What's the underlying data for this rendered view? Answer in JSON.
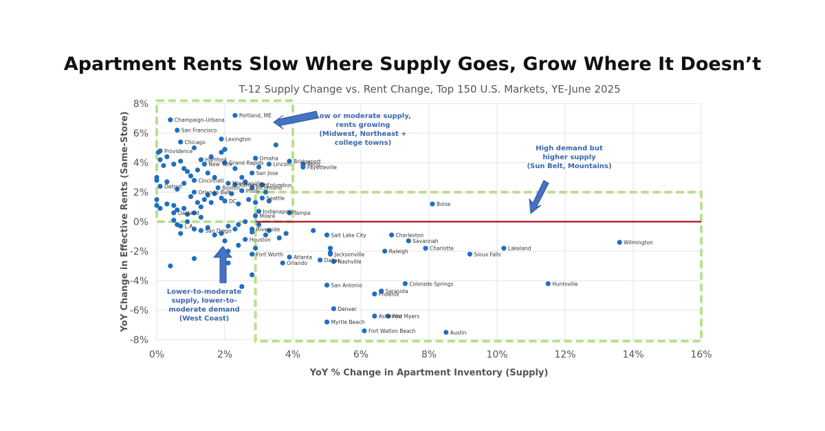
{
  "chart_data": {
    "type": "scatter",
    "title": "Apartment Rents Slow Where Supply Goes, Grow Where It Doesn’t",
    "subtitle": "T-12 Supply Change vs. Rent Change, Top 150 U.S. Markets, YE-June 2025",
    "xlabel": "YoY % Change in Apartment Inventory (Supply)",
    "ylabel": "YoY Change in Effective Rents (Same-Store)",
    "xlim": [
      0,
      16
    ],
    "ylim": [
      -8,
      8
    ],
    "x_ticks": [
      "0%",
      "2%",
      "4%",
      "6%",
      "8%",
      "10%",
      "12%",
      "14%",
      "16%"
    ],
    "y_ticks": [
      "8%",
      "6%",
      "4%",
      "2%",
      "0%",
      "-2%",
      "-4%",
      "-6%",
      "-8%"
    ],
    "grid": true,
    "colors": {
      "points": "#1f6fbf",
      "zero_line": "#b22234",
      "box": "#b9e08f",
      "annotation": "#3a67b0"
    },
    "labeled_points": [
      {
        "label": "Champaign-Urbana",
        "x": 0.4,
        "y": 6.9
      },
      {
        "label": "Portland, ME",
        "x": 2.3,
        "y": 7.2
      },
      {
        "label": "San Francisco",
        "x": 0.6,
        "y": 6.2
      },
      {
        "label": "Chicago",
        "x": 0.7,
        "y": 5.4
      },
      {
        "label": "Providence",
        "x": 0.1,
        "y": 4.8
      },
      {
        "label": "Lexington",
        "x": 1.9,
        "y": 5.6
      },
      {
        "label": "Hartford",
        "x": 1.3,
        "y": 4.2
      },
      {
        "label": "Grand Rapids",
        "x": 2.0,
        "y": 4.0
      },
      {
        "label": "Omaha",
        "x": 2.9,
        "y": 4.3
      },
      {
        "label": "New York",
        "x": 1.4,
        "y": 3.9
      },
      {
        "label": "Bridgeport",
        "x": 3.9,
        "y": 4.1
      },
      {
        "label": "Reno",
        "x": 4.3,
        "y": 3.9
      },
      {
        "label": "Lincoln",
        "x": 3.3,
        "y": 3.9
      },
      {
        "label": "Fayetteville",
        "x": 4.3,
        "y": 3.7
      },
      {
        "label": "San Jose",
        "x": 2.8,
        "y": 3.3
      },
      {
        "label": "Minneapolis",
        "x": 2.1,
        "y": 2.6
      },
      {
        "label": "Cincinnati",
        "x": 1.1,
        "y": 2.8
      },
      {
        "label": "Columbus",
        "x": 3.1,
        "y": 2.5
      },
      {
        "label": "Kansas City",
        "x": 2.3,
        "y": 2.5
      },
      {
        "label": "Richmond",
        "x": 2.8,
        "y": 2.3
      },
      {
        "label": "Detroit",
        "x": 0.1,
        "y": 2.4
      },
      {
        "label": "Boston",
        "x": 1.8,
        "y": 2.3
      },
      {
        "label": "Orlando Balt.",
        "x": 1.1,
        "y": 2.0
      },
      {
        "label": "Philly",
        "x": 2.5,
        "y": 2.1
      },
      {
        "label": "Seattle",
        "x": 3.1,
        "y": 1.6
      },
      {
        "label": "DC",
        "x": 2.0,
        "y": 1.4
      },
      {
        "label": "Oakland",
        "x": 0.5,
        "y": 0.6
      },
      {
        "label": "Indianapolis",
        "x": 3.0,
        "y": 0.7
      },
      {
        "label": "Milaré",
        "x": 2.9,
        "y": 0.4
      },
      {
        "label": "Tampa",
        "x": 3.9,
        "y": 0.6
      },
      {
        "label": "L.A.",
        "x": 0.7,
        "y": -0.3
      },
      {
        "label": "Riverside",
        "x": 2.8,
        "y": -0.5
      },
      {
        "label": "San Diego",
        "x": 1.3,
        "y": -0.6
      },
      {
        "label": "Houston",
        "x": 2.6,
        "y": -1.2
      },
      {
        "label": "Salt Lake City",
        "x": 5.0,
        "y": -0.9
      },
      {
        "label": "Fort Worth",
        "x": 2.8,
        "y": -2.2
      },
      {
        "label": "Atlanta",
        "x": 3.9,
        "y": -2.4
      },
      {
        "label": "Orlando",
        "x": 3.7,
        "y": -2.8
      },
      {
        "label": "Dallas",
        "x": 4.8,
        "y": -2.6
      },
      {
        "label": "Jacksonville",
        "x": 5.1,
        "y": -2.2
      },
      {
        "label": "Nashville",
        "x": 5.2,
        "y": -2.7
      },
      {
        "label": "Charleston",
        "x": 6.9,
        "y": -0.9
      },
      {
        "label": "Savannah",
        "x": 7.4,
        "y": -1.3
      },
      {
        "label": "Raleigh",
        "x": 6.7,
        "y": -2.0
      },
      {
        "label": "Charlotte",
        "x": 7.9,
        "y": -1.8
      },
      {
        "label": "Boise",
        "x": 8.1,
        "y": 1.2
      },
      {
        "label": "Sioux Falls",
        "x": 9.2,
        "y": -2.2
      },
      {
        "label": "Lakeland",
        "x": 10.2,
        "y": -1.8
      },
      {
        "label": "Wilmington",
        "x": 13.6,
        "y": -1.4
      },
      {
        "label": "San Antonio",
        "x": 5.0,
        "y": -4.3
      },
      {
        "label": "Sarasota",
        "x": 6.6,
        "y": -4.7
      },
      {
        "label": "Phoenix",
        "x": 6.4,
        "y": -4.9
      },
      {
        "label": "Colorado Springs",
        "x": 7.3,
        "y": -4.2
      },
      {
        "label": "Huntsville",
        "x": 11.5,
        "y": -4.2
      },
      {
        "label": "Denver",
        "x": 5.2,
        "y": -5.9
      },
      {
        "label": "Asheville",
        "x": 6.4,
        "y": -6.4
      },
      {
        "label": "Fort Myers",
        "x": 6.8,
        "y": -6.4
      },
      {
        "label": "Myrtle Beach",
        "x": 5.0,
        "y": -6.8
      },
      {
        "label": "Fort Walton Beach",
        "x": 6.1,
        "y": -7.4
      },
      {
        "label": "Austin",
        "x": 8.5,
        "y": -7.5
      }
    ],
    "unlabeled_points": [
      [
        0.05,
        4.7
      ],
      [
        0.1,
        4.2
      ],
      [
        0.2,
        3.8
      ],
      [
        0.3,
        4.4
      ],
      [
        0.5,
        3.9
      ],
      [
        0.8,
        3.6
      ],
      [
        0.7,
        4.1
      ],
      [
        0.9,
        3.4
      ],
      [
        1.0,
        3.1
      ],
      [
        1.2,
        3.5
      ],
      [
        1.5,
        3.3
      ],
      [
        1.7,
        3.0
      ],
      [
        1.6,
        4.4
      ],
      [
        1.9,
        4.7
      ],
      [
        2.0,
        4.9
      ],
      [
        1.1,
        5.0
      ],
      [
        2.3,
        3.6
      ],
      [
        2.5,
        3.0
      ],
      [
        3.5,
        5.2
      ],
      [
        3.0,
        3.7
      ],
      [
        0.3,
        2.7
      ],
      [
        0.6,
        2.2
      ],
      [
        0.8,
        2.6
      ],
      [
        1.0,
        1.7
      ],
      [
        1.2,
        1.3
      ],
      [
        1.3,
        1.0
      ],
      [
        1.4,
        1.5
      ],
      [
        1.5,
        1.8
      ],
      [
        1.6,
        1.3
      ],
      [
        1.7,
        1.9
      ],
      [
        1.9,
        1.6
      ],
      [
        2.2,
        1.9
      ],
      [
        2.4,
        1.2
      ],
      [
        2.6,
        2.7
      ],
      [
        2.7,
        1.5
      ],
      [
        2.9,
        1.3
      ],
      [
        3.2,
        2.0
      ],
      [
        3.3,
        1.4
      ],
      [
        0.0,
        3.0
      ],
      [
        0.0,
        2.8
      ],
      [
        0.0,
        1.5
      ],
      [
        0.0,
        1.1
      ],
      [
        0.1,
        0.9
      ],
      [
        0.3,
        1.2
      ],
      [
        0.5,
        1.1
      ],
      [
        0.6,
        0.8
      ],
      [
        0.8,
        0.9
      ],
      [
        0.9,
        0.5
      ],
      [
        1.1,
        0.6
      ],
      [
        1.3,
        0.3
      ],
      [
        0.5,
        0.1
      ],
      [
        0.6,
        -0.2
      ],
      [
        0.7,
        -0.8
      ],
      [
        0.9,
        0.0
      ],
      [
        1.1,
        -0.5
      ],
      [
        1.5,
        -0.4
      ],
      [
        1.7,
        -0.9
      ],
      [
        1.9,
        -0.8
      ],
      [
        2.1,
        -0.3
      ],
      [
        2.3,
        -0.5
      ],
      [
        2.4,
        -0.2
      ],
      [
        2.6,
        0.0
      ],
      [
        2.8,
        -0.7
      ],
      [
        3.0,
        -0.2
      ],
      [
        3.2,
        -0.9
      ],
      [
        3.6,
        -1.1
      ],
      [
        2.0,
        -1.3
      ],
      [
        2.1,
        -2.0
      ],
      [
        2.1,
        -2.8
      ],
      [
        2.4,
        -1.6
      ],
      [
        2.9,
        -1.8
      ],
      [
        1.1,
        -2.5
      ],
      [
        0.4,
        -3.0
      ],
      [
        2.8,
        -3.6
      ],
      [
        2.5,
        -4.4
      ],
      [
        4.6,
        -0.6
      ],
      [
        5.1,
        -1.8
      ],
      [
        5.1,
        -2.1
      ],
      [
        3.3,
        -0.6
      ],
      [
        3.8,
        -0.8
      ]
    ]
  },
  "annotations": {
    "top_left": "Low or moderate supply,\nrents growing\n(Midwest, Northeast +\ncollege towns)",
    "top_right": "High demand but\nhigher supply\n(Sun Belt, Mountains)",
    "left_bottom": "Lower-to-moderate\nsupply, lower-to-\nmoderate demand\n(West Coast)"
  }
}
